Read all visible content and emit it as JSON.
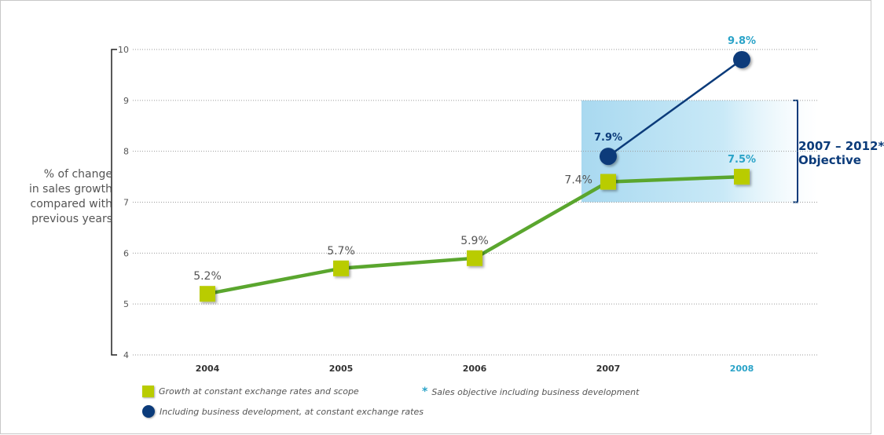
{
  "chart_data": {
    "type": "line",
    "ylabel": [
      "% of change",
      "in sales growth",
      "compared with",
      "previous years"
    ],
    "ylim": [
      4,
      10
    ],
    "yticks": [
      4,
      5,
      6,
      7,
      8,
      9,
      10
    ],
    "categories": [
      "2004",
      "2005",
      "2006",
      "2007",
      "2008"
    ],
    "highlight_category": "2008",
    "series": [
      {
        "key": "constant",
        "marker": "square",
        "color": "#b9cc00",
        "line_color": "#5aa62e",
        "x": [
          "2004",
          "2005",
          "2006",
          "2007",
          "2008"
        ],
        "values": [
          5.2,
          5.7,
          5.9,
          7.4,
          7.5
        ],
        "labels": [
          "5.2%",
          "5.7%",
          "5.9%",
          "7.4%",
          "7.5%"
        ]
      },
      {
        "key": "business_dev",
        "marker": "circle",
        "color": "#0b3b7a",
        "line_color": "#0b3b7a",
        "x": [
          "2007",
          "2008"
        ],
        "values": [
          7.9,
          9.8
        ],
        "labels": [
          "7.9%",
          "9.8%"
        ]
      }
    ],
    "objective_band": {
      "from": "2007",
      "to": "2008",
      "ymin": 7,
      "ymax": 9
    },
    "annotation": {
      "line1": "2007 – 2012*",
      "line2": "Objective"
    },
    "legend": [
      {
        "marker": "square",
        "text": "Growth at constant exchange rates and scope"
      },
      {
        "marker": "circle",
        "text": "Including business development, at constant exchange rates"
      },
      {
        "marker": "star",
        "star": "*",
        "text": "Sales objective including business development"
      }
    ],
    "grid": true,
    "colors": {
      "highlight": "#2aa3c8",
      "band": "#bfe3f4",
      "text": "#555555"
    }
  }
}
